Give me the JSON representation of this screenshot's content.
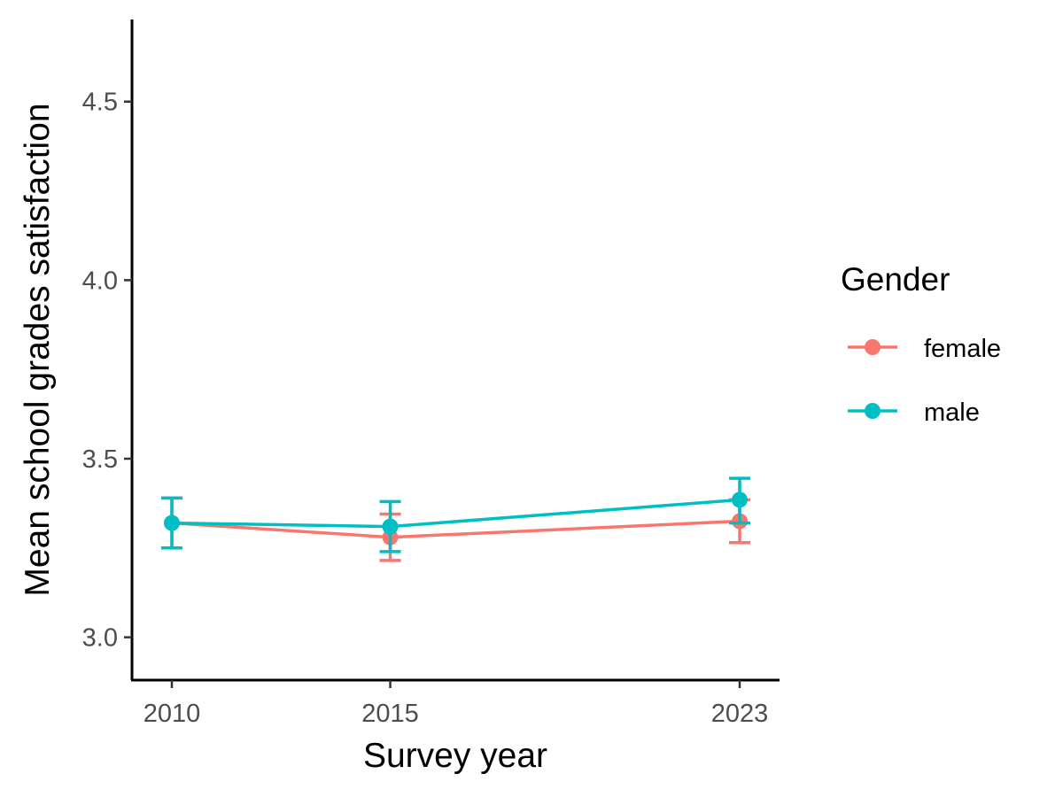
{
  "chart_data": {
    "type": "line",
    "xlabel": "Survey year",
    "ylabel": "Mean school grades satisfaction",
    "x": [
      2010,
      2015,
      2023
    ],
    "x_ticks": [
      "2010",
      "2015",
      "2023"
    ],
    "y_ticks": [
      "3.0",
      "3.5",
      "4.0",
      "4.5"
    ],
    "ylim": [
      2.88,
      4.73
    ],
    "legend": {
      "title": "Gender",
      "position": "right"
    },
    "grid": false,
    "series": [
      {
        "name": "female",
        "color": "#F8766D",
        "values": [
          3.32,
          3.28,
          3.325
        ],
        "error_low": [
          3.25,
          3.215,
          3.265
        ],
        "error_high": [
          3.39,
          3.345,
          3.385
        ]
      },
      {
        "name": "male",
        "color": "#00BFC4",
        "values": [
          3.32,
          3.31,
          3.385
        ],
        "error_low": [
          3.25,
          3.24,
          3.32
        ],
        "error_high": [
          3.39,
          3.38,
          3.445
        ]
      }
    ]
  }
}
